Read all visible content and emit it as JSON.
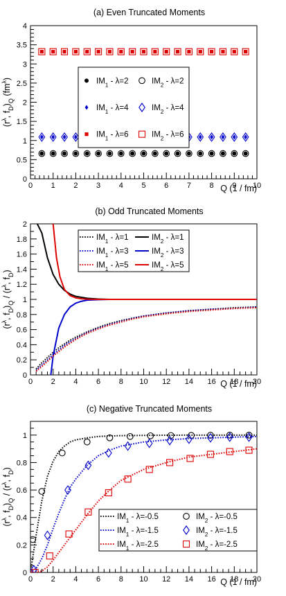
{
  "chart_data": [
    {
      "type": "scatter",
      "title": "(a)  Even Truncated Moments",
      "xlabel": "Q   (1 / fm)",
      "ylabel": "(r^λ, f_D)_Q   (fm^λ)",
      "xlim": [
        0,
        10
      ],
      "ylim": [
        0,
        4
      ],
      "xticks": [
        "0",
        "1",
        "2",
        "3",
        "4",
        "5",
        "6",
        "7",
        "8",
        "9",
        "10"
      ],
      "yticks": [
        "0",
        "0.5",
        "1",
        "1.5",
        "2",
        "2.5",
        "3",
        "3.5",
        "4"
      ],
      "x": [
        0.5,
        1.0,
        1.5,
        2.0,
        2.5,
        3.0,
        3.5,
        4.0,
        4.5,
        5.0,
        5.5,
        6.0,
        6.5,
        7.0,
        7.5,
        8.0,
        8.5,
        9.0,
        9.5
      ],
      "legend_position": "center",
      "series": [
        {
          "name": "IM1 - λ=2",
          "base": "IM",
          "sub": "1",
          "suffix": " - λ=2",
          "marker": "dot",
          "color": "#000000",
          "constant": 0.66
        },
        {
          "name": "IM2 - λ=2",
          "base": "IM",
          "sub": "2",
          "suffix": " - λ=2",
          "marker": "circle",
          "color": "#000000",
          "constant": 0.66
        },
        {
          "name": "IM1 - λ=4",
          "base": "IM",
          "sub": "1",
          "suffix": " - λ=4",
          "marker": "small-diamond",
          "color": "#0000cc",
          "constant": 1.09
        },
        {
          "name": "IM2 - λ=4",
          "base": "IM",
          "sub": "2",
          "suffix": " - λ=4",
          "marker": "diamond",
          "color": "#0000cc",
          "constant": 1.09
        },
        {
          "name": "IM1 - λ=6",
          "base": "IM",
          "sub": "1",
          "suffix": " - λ=6",
          "marker": "small-square",
          "color": "#dd0000",
          "constant": 3.32
        },
        {
          "name": "IM2 - λ=6",
          "base": "IM",
          "sub": "2",
          "suffix": " - λ=6",
          "marker": "square",
          "color": "#dd0000",
          "constant": 3.32
        }
      ]
    },
    {
      "type": "line",
      "title": "(b)  Odd Truncated Moments",
      "xlabel": "Q   (1 / fm)",
      "ylabel": "(r^λ, f_D)_Q  /  (r^λ, f_D)",
      "xlim": [
        0,
        20
      ],
      "ylim": [
        0,
        2
      ],
      "xticks": [
        "0",
        "2",
        "4",
        "6",
        "8",
        "10",
        "12",
        "14",
        "16",
        "18",
        "20"
      ],
      "yticks": [
        "0",
        "0.2",
        "0.4",
        "0.6",
        "0.8",
        "1",
        "1.2",
        "1.4",
        "1.6",
        "1.8",
        "2"
      ],
      "legend_position": "top-center",
      "x": [
        0.5,
        1,
        1.5,
        2,
        2.5,
        3,
        3.5,
        4,
        5,
        6,
        7,
        8,
        9,
        10,
        12,
        14,
        16,
        18,
        20
      ],
      "series": [
        {
          "name": "IM1 - λ=1",
          "base": "IM",
          "sub": "1",
          "suffix": " - λ=1",
          "style": "dotted",
          "color": "#000000",
          "values": [
            0.08,
            0.16,
            0.23,
            0.3,
            0.36,
            0.41,
            0.46,
            0.5,
            0.57,
            0.63,
            0.68,
            0.72,
            0.75,
            0.78,
            0.82,
            0.85,
            0.87,
            0.89,
            0.9
          ]
        },
        {
          "name": "IM2 - λ=1",
          "base": "IM",
          "sub": "2",
          "suffix": " - λ=1",
          "style": "solid",
          "color": "#000000",
          "x": [
            0.6,
            1,
            1.5,
            2,
            2.5,
            3,
            3.5,
            4,
            5,
            6,
            7,
            8,
            10,
            15,
            20
          ],
          "values": [
            2.0,
            1.88,
            1.55,
            1.33,
            1.2,
            1.12,
            1.07,
            1.04,
            1.015,
            1.005,
            1.0,
            1.0,
            1.0,
            1.0,
            1.0
          ]
        },
        {
          "name": "IM1 - λ=3",
          "base": "IM",
          "sub": "1",
          "suffix": " - λ=3",
          "style": "dotted",
          "color": "#0000cc",
          "values": [
            0.06,
            0.13,
            0.2,
            0.27,
            0.33,
            0.39,
            0.44,
            0.48,
            0.56,
            0.62,
            0.67,
            0.71,
            0.75,
            0.78,
            0.82,
            0.85,
            0.87,
            0.88,
            0.9
          ]
        },
        {
          "name": "IM2 - λ=3",
          "base": "IM",
          "sub": "2",
          "suffix": " - λ=3",
          "style": "solid",
          "color": "#0000cc",
          "x": [
            1.8,
            2,
            2.5,
            3,
            3.5,
            4,
            4.5,
            5,
            6,
            7,
            8,
            10,
            15,
            20
          ],
          "values": [
            0.0,
            0.25,
            0.62,
            0.8,
            0.9,
            0.95,
            0.975,
            0.99,
            0.997,
            1.0,
            1.0,
            1.0,
            1.0,
            1.0
          ]
        },
        {
          "name": "IM1 - λ=5",
          "base": "IM",
          "sub": "1",
          "suffix": " - λ=5",
          "style": "dotted",
          "color": "#dd0000",
          "values": [
            0.05,
            0.11,
            0.18,
            0.25,
            0.31,
            0.37,
            0.42,
            0.47,
            0.55,
            0.61,
            0.66,
            0.7,
            0.74,
            0.77,
            0.81,
            0.84,
            0.86,
            0.88,
            0.89
          ]
        },
        {
          "name": "IM2 - λ=5",
          "base": "IM",
          "sub": "2",
          "suffix": " - λ=5",
          "style": "solid",
          "color": "#dd0000",
          "x": [
            2.0,
            2.3,
            2.6,
            3,
            3.5,
            4,
            4.5,
            5,
            6,
            7,
            8,
            10,
            15,
            20
          ],
          "values": [
            2.0,
            1.55,
            1.3,
            1.13,
            1.05,
            1.02,
            1.008,
            1.003,
            1.0,
            1.0,
            1.0,
            1.0,
            1.0,
            1.0
          ]
        }
      ]
    },
    {
      "type": "line",
      "title": "(c)  Negative Truncated Moments",
      "xlabel": "Q   (1 / fm)",
      "ylabel": "(r^λ, f_D)_Q  /  (r^λ, f_D)",
      "xlim": [
        0,
        20
      ],
      "ylim": [
        0,
        1.1
      ],
      "xticks": [
        "0",
        "2",
        "4",
        "6",
        "8",
        "10",
        "12",
        "14",
        "16",
        "18",
        "20"
      ],
      "yticks": [
        "0",
        "0.2",
        "0.4",
        "0.6",
        "0.8",
        "1"
      ],
      "legend_position": "bottom-right",
      "series": [
        {
          "name": "IM1 - λ=-0.5",
          "base": "IM",
          "sub": "1",
          "suffix": " - λ=-0.5",
          "style": "dotted",
          "color": "#000000",
          "x": [
            0,
            0.5,
            1,
            1.5,
            2,
            2.5,
            3,
            3.5,
            4,
            5,
            6,
            7,
            8,
            10,
            12,
            15,
            20
          ],
          "values": [
            0.0,
            0.27,
            0.52,
            0.7,
            0.81,
            0.88,
            0.92,
            0.95,
            0.965,
            0.98,
            0.99,
            0.994,
            0.996,
            0.998,
            0.999,
            1.0,
            1.0
          ]
        },
        {
          "name": "IM2 - λ=-0.5",
          "base": "IM",
          "sub": "2",
          "suffix": " - λ=-0.5",
          "marker": "circle",
          "color": "#000000",
          "x": [
            0.2,
            1.0,
            2.8,
            5.0,
            7.0,
            8.8,
            10.6,
            12.4,
            14.2,
            15.9,
            17.6,
            19.3
          ],
          "values": [
            0.24,
            0.59,
            0.87,
            0.95,
            0.98,
            0.99,
            0.995,
            0.997,
            0.998,
            0.999,
            1.0,
            1.0
          ]
        },
        {
          "name": "IM1 - λ=-1.5",
          "base": "IM",
          "sub": "1",
          "suffix": " - λ=-1.5",
          "style": "dotted",
          "color": "#0000cc",
          "x": [
            0,
            0.5,
            1,
            1.5,
            2,
            2.5,
            3,
            3.5,
            4,
            5,
            6,
            7,
            8,
            10,
            12,
            14,
            16,
            18,
            20
          ],
          "values": [
            0.0,
            0.03,
            0.1,
            0.2,
            0.32,
            0.43,
            0.53,
            0.62,
            0.68,
            0.78,
            0.85,
            0.89,
            0.92,
            0.95,
            0.965,
            0.975,
            0.98,
            0.985,
            0.99
          ]
        },
        {
          "name": "IM2 - λ=-1.5",
          "base": "IM",
          "sub": "2",
          "suffix": " - λ=-1.5",
          "marker": "diamond",
          "color": "#0000cc",
          "x": [
            0.3,
            1.5,
            3.3,
            5.1,
            6.9,
            8.6,
            10.5,
            12.3,
            14.0,
            15.9,
            17.6,
            19.3
          ],
          "values": [
            0.02,
            0.27,
            0.6,
            0.78,
            0.87,
            0.92,
            0.94,
            0.96,
            0.97,
            0.98,
            0.985,
            0.985
          ]
        },
        {
          "name": "IM1 - λ=-2.5",
          "base": "IM",
          "sub": "1",
          "suffix": " - λ=-2.5",
          "style": "dotted",
          "color": "#dd0000",
          "x": [
            0,
            0.5,
            1,
            1.5,
            2,
            3,
            4,
            5,
            6,
            7,
            8,
            10,
            12,
            14,
            16,
            18,
            20
          ],
          "values": [
            0.0,
            0.0,
            0.01,
            0.04,
            0.09,
            0.2,
            0.31,
            0.42,
            0.52,
            0.6,
            0.67,
            0.75,
            0.8,
            0.84,
            0.86,
            0.88,
            0.9
          ]
        },
        {
          "name": "IM2 - λ=-2.5",
          "base": "IM",
          "sub": "2",
          "suffix": " - λ=-2.5",
          "marker": "square",
          "color": "#dd0000",
          "x": [
            0.4,
            1.7,
            3.4,
            5.1,
            6.9,
            8.6,
            10.5,
            12.3,
            14.1,
            15.9,
            17.6,
            19.3
          ],
          "values": [
            0.0,
            0.12,
            0.28,
            0.44,
            0.58,
            0.68,
            0.75,
            0.8,
            0.83,
            0.86,
            0.88,
            0.89
          ]
        }
      ]
    }
  ]
}
